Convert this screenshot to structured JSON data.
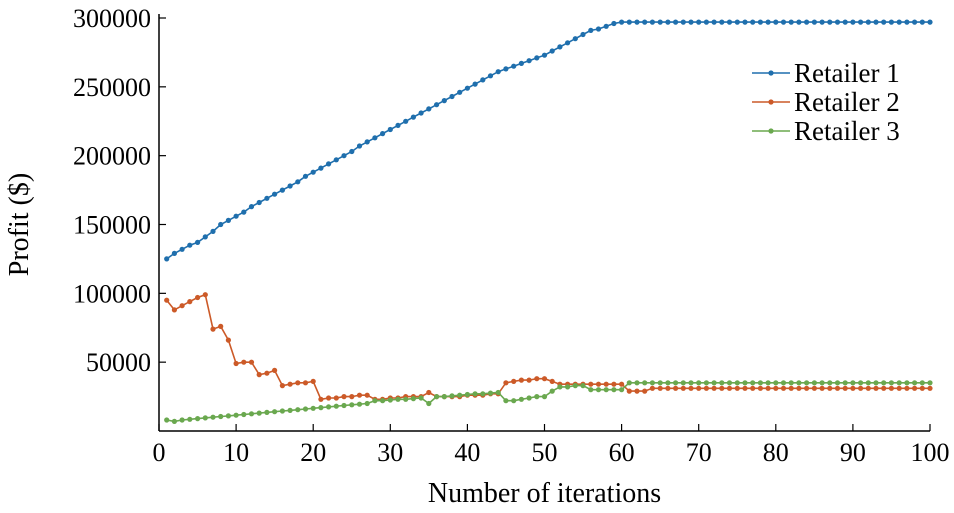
{
  "chart_data": {
    "type": "line",
    "title": "",
    "xlabel": "Number of iterations",
    "ylabel": "Profit ($)",
    "xlim": [
      0,
      100
    ],
    "ylim": [
      0,
      300000
    ],
    "xticks": [
      0,
      10,
      20,
      30,
      40,
      50,
      60,
      70,
      80,
      90,
      100
    ],
    "yticks": [
      50000,
      100000,
      150000,
      200000,
      250000,
      300000
    ],
    "xtick_labels": [
      "0",
      "10",
      "20",
      "30",
      "40",
      "50",
      "60",
      "70",
      "80",
      "90",
      "100"
    ],
    "ytick_labels": [
      "50000",
      "100000",
      "150000",
      "200000",
      "250000",
      "300000"
    ],
    "grid": false,
    "legend_position": "top-right",
    "x": [
      1,
      2,
      3,
      4,
      5,
      6,
      7,
      8,
      9,
      10,
      11,
      12,
      13,
      14,
      15,
      16,
      17,
      18,
      19,
      20,
      21,
      22,
      23,
      24,
      25,
      26,
      27,
      28,
      29,
      30,
      31,
      32,
      33,
      34,
      35,
      36,
      37,
      38,
      39,
      40,
      41,
      42,
      43,
      44,
      45,
      46,
      47,
      48,
      49,
      50,
      51,
      52,
      53,
      54,
      55,
      56,
      57,
      58,
      59,
      60,
      61,
      62,
      63,
      64,
      65,
      66,
      67,
      68,
      69,
      70,
      71,
      72,
      73,
      74,
      75,
      76,
      77,
      78,
      79,
      80,
      81,
      82,
      83,
      84,
      85,
      86,
      87,
      88,
      89,
      90,
      91,
      92,
      93,
      94,
      95,
      96,
      97,
      98,
      99,
      100
    ],
    "series": [
      {
        "name": "Retailer 1",
        "color": "#1f6fad",
        "values": [
          125000,
          129000,
          132000,
          135000,
          137000,
          141000,
          145000,
          150000,
          153000,
          156000,
          159000,
          163000,
          166000,
          169000,
          172000,
          175000,
          178000,
          181000,
          185000,
          188000,
          191000,
          194000,
          197000,
          200000,
          203000,
          207000,
          210000,
          213000,
          216000,
          219000,
          222000,
          225000,
          228000,
          231000,
          234000,
          237000,
          240000,
          243000,
          246000,
          249000,
          252000,
          255000,
          258000,
          261000,
          263000,
          265000,
          267000,
          269000,
          271000,
          273000,
          276000,
          279000,
          282000,
          285000,
          288000,
          291000,
          292000,
          294000,
          296000,
          297000,
          297000,
          297000,
          297000,
          297000,
          297000,
          297000,
          297000,
          297000,
          297000,
          297000,
          297000,
          297000,
          297000,
          297000,
          297000,
          297000,
          297000,
          297000,
          297000,
          297000,
          297000,
          297000,
          297000,
          297000,
          297000,
          297000,
          297000,
          297000,
          297000,
          297000,
          297000,
          297000,
          297000,
          297000,
          297000,
          297000,
          297000,
          297000,
          297000,
          297000
        ]
      },
      {
        "name": "Retailer 2",
        "color": "#cc5a28",
        "values": [
          95000,
          88000,
          91000,
          94000,
          97000,
          99000,
          74000,
          76000,
          66000,
          49000,
          50000,
          50000,
          41000,
          42000,
          44000,
          33000,
          34000,
          35000,
          35000,
          36000,
          23000,
          24000,
          24000,
          25000,
          25000,
          26000,
          26000,
          23000,
          23000,
          24000,
          24000,
          25000,
          25000,
          25000,
          28000,
          25000,
          25000,
          25000,
          25000,
          26000,
          26000,
          26000,
          27000,
          27000,
          35000,
          36000,
          37000,
          37000,
          38000,
          38000,
          36000,
          34000,
          34000,
          34000,
          34000,
          34000,
          34000,
          34000,
          34000,
          34000,
          29000,
          29000,
          29000,
          31000,
          31000,
          31000,
          31000,
          31000,
          31000,
          31000,
          31000,
          31000,
          31000,
          31000,
          31000,
          31000,
          31000,
          31000,
          31000,
          31000,
          31000,
          31000,
          31000,
          31000,
          31000,
          31000,
          31000,
          31000,
          31000,
          31000,
          31000,
          31000,
          31000,
          31000,
          31000,
          31000,
          31000,
          31000,
          31000,
          31000
        ]
      },
      {
        "name": "Retailer 3",
        "color": "#6aa84f",
        "values": [
          8000,
          7000,
          8000,
          8500,
          9000,
          9500,
          10000,
          10500,
          11000,
          11500,
          12000,
          12500,
          13000,
          13500,
          14000,
          14500,
          15000,
          15500,
          16000,
          16500,
          17000,
          17500,
          18000,
          18500,
          19000,
          19500,
          20000,
          22000,
          22000,
          22500,
          23000,
          23000,
          23500,
          24000,
          20000,
          25000,
          25000,
          25500,
          26000,
          26500,
          27000,
          27000,
          27500,
          28000,
          22000,
          22000,
          23000,
          24000,
          25000,
          25000,
          29000,
          32000,
          32000,
          33000,
          33000,
          30000,
          30000,
          30000,
          30000,
          30000,
          35000,
          35000,
          35000,
          35000,
          35000,
          35000,
          35000,
          35000,
          35000,
          35000,
          35000,
          35000,
          35000,
          35000,
          35000,
          35000,
          35000,
          35000,
          35000,
          35000,
          35000,
          35000,
          35000,
          35000,
          35000,
          35000,
          35000,
          35000,
          35000,
          35000,
          35000,
          35000,
          35000,
          35000,
          35000,
          35000,
          35000,
          35000,
          35000,
          35000
        ]
      }
    ]
  }
}
